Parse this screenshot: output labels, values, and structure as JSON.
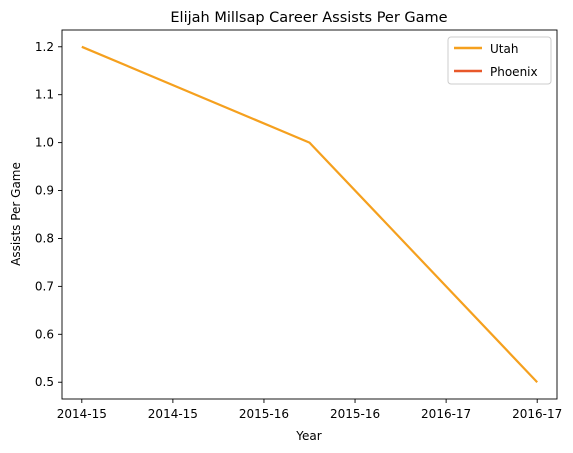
{
  "chart_data": {
    "type": "line",
    "title": "Elijah Millsap Career Assists Per Game",
    "xlabel": "Year",
    "ylabel": "Assists Per Game",
    "x_ticks": [
      "2014-15",
      "2014-15",
      "2015-16",
      "2015-16",
      "2016-17",
      "2016-17"
    ],
    "y_ticks": [
      0.5,
      0.6,
      0.7,
      0.8,
      0.9,
      1.0,
      1.1,
      1.2
    ],
    "ylim": [
      0.465,
      1.235
    ],
    "grid": false,
    "legend_position": "top-right",
    "series": [
      {
        "name": "Utah",
        "color": "#f5a01e",
        "points": [
          {
            "x": 0,
            "y": 1.2
          },
          {
            "x": 1,
            "y": 1.0
          },
          {
            "x": 2,
            "y": 0.5
          }
        ]
      },
      {
        "name": "Phoenix",
        "color": "#e8582a",
        "points": []
      }
    ]
  }
}
